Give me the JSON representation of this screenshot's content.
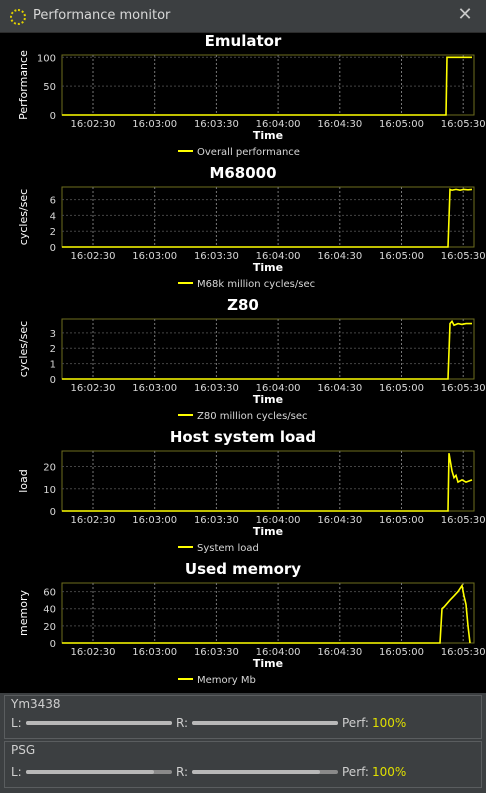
{
  "window": {
    "title": "Performance monitor",
    "icon": "spinner-icon",
    "close_icon": "close-icon"
  },
  "charts": [
    {
      "type": "line",
      "title": "Emulator",
      "xlabel": "Time",
      "ylabel": "Performance",
      "legend": "Overall performance",
      "x_ticks": [
        "16:02:30",
        "16:03:00",
        "16:03:30",
        "16:04:00",
        "16:04:30",
        "16:05:00",
        "16:05:30"
      ],
      "y_ticks": [
        0,
        50,
        100
      ],
      "ylim": [
        0,
        104
      ],
      "color": "#ffff00",
      "points": [
        [
          0,
          0
        ],
        [
          192,
          0
        ],
        [
          192.5,
          100
        ],
        [
          205,
          100
        ]
      ]
    },
    {
      "type": "line",
      "title": "M68000",
      "xlabel": "Time",
      "ylabel": "cycles/sec",
      "legend": "M68k million cycles/sec",
      "x_ticks": [
        "16:02:30",
        "16:03:00",
        "16:03:30",
        "16:04:00",
        "16:04:30",
        "16:05:00",
        "16:05:30"
      ],
      "y_ticks": [
        0,
        2,
        4,
        6
      ],
      "ylim": [
        0,
        7.6
      ],
      "color": "#ffff00",
      "points": [
        [
          0,
          0
        ],
        [
          193,
          0
        ],
        [
          194,
          7.3
        ],
        [
          195,
          7.2
        ],
        [
          197,
          7.3
        ],
        [
          199,
          7.2
        ],
        [
          201,
          7.3
        ],
        [
          203,
          7.25
        ],
        [
          205,
          7.3
        ]
      ]
    },
    {
      "type": "line",
      "title": "Z80",
      "xlabel": "Time",
      "ylabel": "cycles/sec",
      "legend": "Z80 million cycles/sec",
      "x_ticks": [
        "16:02:30",
        "16:03:00",
        "16:03:30",
        "16:04:00",
        "16:04:30",
        "16:05:00",
        "16:05:30"
      ],
      "y_ticks": [
        0,
        1,
        2,
        3
      ],
      "ylim": [
        0,
        3.9
      ],
      "color": "#ffff00",
      "points": [
        [
          0,
          0
        ],
        [
          193,
          0
        ],
        [
          194,
          3.6
        ],
        [
          195,
          3.75
        ],
        [
          196,
          3.5
        ],
        [
          198,
          3.6
        ],
        [
          200,
          3.55
        ],
        [
          202,
          3.6
        ],
        [
          205,
          3.6
        ]
      ]
    },
    {
      "type": "line",
      "title": "Host system load",
      "xlabel": "Time",
      "ylabel": "load",
      "legend": "System load",
      "x_ticks": [
        "16:02:30",
        "16:03:00",
        "16:03:30",
        "16:04:00",
        "16:04:30",
        "16:05:00",
        "16:05:30"
      ],
      "y_ticks": [
        0,
        10,
        20
      ],
      "ylim": [
        0,
        27
      ],
      "color": "#ffff00",
      "points": [
        [
          0,
          0
        ],
        [
          193,
          0
        ],
        [
          193.5,
          26
        ],
        [
          195,
          18
        ],
        [
          196,
          15
        ],
        [
          197,
          16
        ],
        [
          198,
          13
        ],
        [
          200,
          14
        ],
        [
          202,
          13
        ],
        [
          205,
          14
        ]
      ]
    },
    {
      "type": "line",
      "title": "Used memory",
      "xlabel": "Time",
      "ylabel": "memory",
      "legend": "Memory Mb",
      "x_ticks": [
        "16:02:30",
        "16:03:00",
        "16:03:30",
        "16:04:00",
        "16:04:30",
        "16:05:00",
        "16:05:30"
      ],
      "y_ticks": [
        0,
        20,
        40,
        60
      ],
      "ylim": [
        0,
        70
      ],
      "color": "#ffff00",
      "points": [
        [
          0,
          0
        ],
        [
          189,
          0
        ],
        [
          190,
          40
        ],
        [
          191,
          42
        ],
        [
          194,
          50
        ],
        [
          196,
          55
        ],
        [
          198,
          60
        ],
        [
          200,
          67
        ],
        [
          201,
          55
        ],
        [
          202,
          45
        ],
        [
          203,
          20
        ],
        [
          204,
          0
        ]
      ]
    }
  ],
  "audio": [
    {
      "name": "Ym3438",
      "left_label": "L:",
      "right_label": "R:",
      "perf_label": "Perf:",
      "perf_value": "100%",
      "left_level": 1.0,
      "right_level": 1.0
    },
    {
      "name": "PSG",
      "left_label": "L:",
      "right_label": "R:",
      "perf_label": "Perf:",
      "perf_value": "100%",
      "left_level": 0.88,
      "right_level": 0.88
    }
  ]
}
